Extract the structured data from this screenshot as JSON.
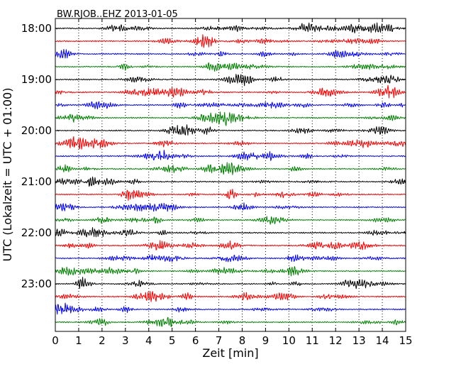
{
  "chart_data": {
    "type": "line",
    "title": "BW.RJOB..EHZ 2013-01-05",
    "xlabel": "Zeit  [min]",
    "ylabel": "UTC (Lokalzeit = UTC + 01:00)",
    "xlim": [
      0,
      15
    ],
    "x_ticks": [
      "0",
      "1",
      "2",
      "3",
      "4",
      "5",
      "6",
      "7",
      "8",
      "9",
      "10",
      "11",
      "12",
      "13",
      "14",
      "15"
    ],
    "y_ticks": [
      "18:00",
      "19:00",
      "20:00",
      "21:00",
      "22:00",
      "23:00"
    ],
    "trace_count": 24,
    "traces_per_hour": 4,
    "trace_colors": [
      "#000000",
      "#ff0000",
      "#0000ff",
      "#008000"
    ],
    "grid": "vertical dotted",
    "legend": "none"
  }
}
